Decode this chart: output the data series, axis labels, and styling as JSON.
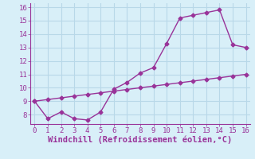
{
  "xlabel": "Windchill (Refroidissement éolien,°C)",
  "line1_x": [
    0,
    1,
    2,
    3,
    4,
    5,
    6,
    7,
    8,
    9,
    10,
    11,
    12,
    13,
    14,
    15,
    16
  ],
  "line1_y": [
    9.0,
    7.7,
    8.2,
    7.7,
    7.6,
    8.2,
    9.9,
    10.4,
    11.1,
    11.5,
    13.3,
    15.2,
    15.4,
    15.6,
    15.8,
    13.2,
    13.0
  ],
  "line2_x": [
    0,
    1,
    2,
    3,
    4,
    5,
    6,
    7,
    8,
    9,
    10,
    11,
    12,
    13,
    14,
    15,
    16
  ],
  "line2_y": [
    9.0,
    9.125,
    9.25,
    9.375,
    9.5,
    9.625,
    9.75,
    9.875,
    10.0,
    10.125,
    10.25,
    10.375,
    10.5,
    10.625,
    10.75,
    10.875,
    11.0
  ],
  "color": "#993399",
  "bg_color": "#d8eff8",
  "grid_color": "#b8d8e8",
  "xlim": [
    -0.3,
    16.3
  ],
  "ylim": [
    7.3,
    16.3
  ],
  "xticks": [
    0,
    1,
    2,
    3,
    4,
    5,
    6,
    7,
    8,
    9,
    10,
    11,
    12,
    13,
    14,
    15,
    16
  ],
  "yticks": [
    8,
    9,
    10,
    11,
    12,
    13,
    14,
    15,
    16
  ],
  "tick_fontsize": 6.5,
  "xlabel_fontsize": 7.5,
  "marker": "D",
  "markersize": 2.5,
  "linewidth": 1.0
}
